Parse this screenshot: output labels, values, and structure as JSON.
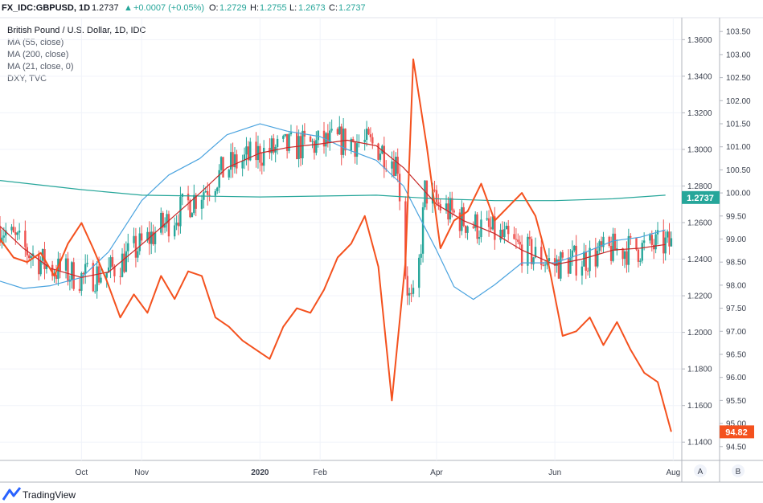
{
  "header": {
    "symbol": "FX_IDC:GBPUSD, 1D",
    "last": "1.2737",
    "change": "+0.0007 (+0.05%)",
    "o_label": "O:",
    "open": "1.2729",
    "h_label": "H:",
    "high": "1.2755",
    "l_label": "L:",
    "low": "1.2673",
    "c_label": "C:",
    "close": "1.2737"
  },
  "legend": {
    "title": "British Pound / U.S. Dollar, 1D, IDC",
    "items": [
      "MA (55, close)",
      "MA (200, close)",
      "MA (21, close, 0)",
      "DXY, TVC"
    ]
  },
  "footer": {
    "brand": "TradingView"
  },
  "scale_buttons": [
    "A",
    "B"
  ],
  "colors": {
    "up": "#26a69a",
    "down": "#ef5350",
    "dxy": "#f4511e",
    "ma55": "#4aa3df",
    "ma200": "#26a69a",
    "ma21": "#c62828",
    "up_marker": "#26a69a"
  },
  "chart_data": {
    "type": "line",
    "x_labels": [
      {
        "label": "Oct",
        "date": "2019-10-01"
      },
      {
        "label": "Nov",
        "date": "2019-11-01"
      },
      {
        "label": "2020",
        "date": "2020-01-01"
      },
      {
        "label": "Feb",
        "date": "2020-02-01"
      },
      {
        "label": "Apr",
        "date": "2020-04-01"
      },
      {
        "label": "Jun",
        "date": "2020-06-01"
      },
      {
        "label": "Aug",
        "date": "2020-08-01"
      }
    ],
    "x_range": [
      "2019-08-20",
      "2020-08-05"
    ],
    "left_axis": {
      "range": [
        1.13,
        1.372
      ],
      "ticks": [
        "1.3600",
        "1.3400",
        "1.3200",
        "1.3000",
        "1.2800",
        "1.2600",
        "1.2400",
        "1.2200",
        "1.2000",
        "1.1800",
        "1.1600",
        "1.1400"
      ]
    },
    "right_axis": {
      "range": [
        94.2,
        103.8
      ],
      "ticks": [
        "103.50",
        "103.00",
        "102.50",
        "102.00",
        "101.50",
        "101.00",
        "100.50",
        "100.00",
        "99.50",
        "99.00",
        "98.50",
        "98.00",
        "97.50",
        "97.00",
        "96.50",
        "96.00",
        "95.50",
        "95.00",
        "94.50"
      ]
    },
    "last_price_label": "1.2737",
    "last_dxy_label": "94.82",
    "series": [
      {
        "name": "MA (55, close)",
        "axis": "left",
        "points": [
          [
            "2019-08-20",
            1.228
          ],
          [
            "2019-09-01",
            1.224
          ],
          [
            "2019-09-15",
            1.2255
          ],
          [
            "2019-10-01",
            1.23
          ],
          [
            "2019-10-15",
            1.244
          ],
          [
            "2019-11-01",
            1.272
          ],
          [
            "2019-11-15",
            1.286
          ],
          [
            "2019-12-01",
            1.295
          ],
          [
            "2019-12-15",
            1.308
          ],
          [
            "2020-01-01",
            1.314
          ],
          [
            "2020-01-15",
            1.31
          ],
          [
            "2020-02-01",
            1.307
          ],
          [
            "2020-02-15",
            1.3
          ],
          [
            "2020-03-01",
            1.294
          ],
          [
            "2020-03-15",
            1.28
          ],
          [
            "2020-04-01",
            1.245
          ],
          [
            "2020-04-10",
            1.225
          ],
          [
            "2020-04-20",
            1.218
          ],
          [
            "2020-05-01",
            1.226
          ],
          [
            "2020-05-15",
            1.238
          ],
          [
            "2020-06-01",
            1.238
          ],
          [
            "2020-06-15",
            1.243
          ],
          [
            "2020-07-01",
            1.25
          ],
          [
            "2020-07-15",
            1.252
          ],
          [
            "2020-07-28",
            1.256
          ]
        ]
      },
      {
        "name": "MA (200, close)",
        "axis": "left",
        "points": [
          [
            "2019-08-20",
            1.283
          ],
          [
            "2019-10-01",
            1.278
          ],
          [
            "2019-11-01",
            1.275
          ],
          [
            "2019-12-01",
            1.2745
          ],
          [
            "2020-01-01",
            1.274
          ],
          [
            "2020-02-01",
            1.2745
          ],
          [
            "2020-03-01",
            1.275
          ],
          [
            "2020-04-01",
            1.273
          ],
          [
            "2020-05-01",
            1.272
          ],
          [
            "2020-06-01",
            1.272
          ],
          [
            "2020-07-01",
            1.273
          ],
          [
            "2020-07-28",
            1.275
          ]
        ]
      },
      {
        "name": "MA (21, close, 0)",
        "axis": "left",
        "points": [
          [
            "2019-08-20",
            1.258
          ],
          [
            "2019-09-01",
            1.246
          ],
          [
            "2019-09-15",
            1.235
          ],
          [
            "2019-10-01",
            1.23
          ],
          [
            "2019-10-15",
            1.233
          ],
          [
            "2019-11-01",
            1.248
          ],
          [
            "2019-11-15",
            1.261
          ],
          [
            "2019-12-01",
            1.276
          ],
          [
            "2019-12-15",
            1.29
          ],
          [
            "2020-01-01",
            1.298
          ],
          [
            "2020-01-15",
            1.301
          ],
          [
            "2020-02-01",
            1.303
          ],
          [
            "2020-02-15",
            1.305
          ],
          [
            "2020-03-01",
            1.302
          ],
          [
            "2020-03-15",
            1.29
          ],
          [
            "2020-04-01",
            1.27
          ],
          [
            "2020-04-15",
            1.261
          ],
          [
            "2020-05-01",
            1.254
          ],
          [
            "2020-05-15",
            1.245
          ],
          [
            "2020-06-01",
            1.237
          ],
          [
            "2020-06-15",
            1.24
          ],
          [
            "2020-07-01",
            1.245
          ],
          [
            "2020-07-15",
            1.246
          ],
          [
            "2020-07-28",
            1.248
          ]
        ]
      },
      {
        "name": "DXY, TVC",
        "axis": "right",
        "points": [
          [
            "2019-08-20",
            99.0
          ],
          [
            "2019-08-27",
            98.6
          ],
          [
            "2019-09-03",
            98.5
          ],
          [
            "2019-09-10",
            98.7
          ],
          [
            "2019-09-17",
            98.2
          ],
          [
            "2019-09-24",
            98.9
          ],
          [
            "2019-10-01",
            99.35
          ],
          [
            "2019-10-07",
            98.8
          ],
          [
            "2019-10-14",
            98.1
          ],
          [
            "2019-10-21",
            97.3
          ],
          [
            "2019-10-28",
            97.8
          ],
          [
            "2019-11-04",
            97.4
          ],
          [
            "2019-11-11",
            98.2
          ],
          [
            "2019-11-18",
            97.7
          ],
          [
            "2019-11-25",
            98.3
          ],
          [
            "2019-12-02",
            98.2
          ],
          [
            "2019-12-09",
            97.3
          ],
          [
            "2019-12-16",
            97.1
          ],
          [
            "2019-12-23",
            96.8
          ],
          [
            "2019-12-30",
            96.6
          ],
          [
            "2020-01-06",
            96.4
          ],
          [
            "2020-01-13",
            97.1
          ],
          [
            "2020-01-20",
            97.5
          ],
          [
            "2020-01-27",
            97.4
          ],
          [
            "2020-02-03",
            97.9
          ],
          [
            "2020-02-10",
            98.6
          ],
          [
            "2020-02-17",
            98.9
          ],
          [
            "2020-02-24",
            99.5
          ],
          [
            "2020-03-02",
            98.4
          ],
          [
            "2020-03-09",
            95.5
          ],
          [
            "2020-03-16",
            98.5
          ],
          [
            "2020-03-20",
            102.9
          ],
          [
            "2020-03-27",
            101.0
          ],
          [
            "2020-04-03",
            98.8
          ],
          [
            "2020-04-10",
            99.4
          ],
          [
            "2020-04-17",
            99.6
          ],
          [
            "2020-04-24",
            100.2
          ],
          [
            "2020-05-01",
            99.4
          ],
          [
            "2020-05-08",
            99.7
          ],
          [
            "2020-05-15",
            100.0
          ],
          [
            "2020-05-22",
            99.5
          ],
          [
            "2020-05-29",
            98.4
          ],
          [
            "2020-06-05",
            96.9
          ],
          [
            "2020-06-12",
            97.0
          ],
          [
            "2020-06-19",
            97.3
          ],
          [
            "2020-06-26",
            96.7
          ],
          [
            "2020-07-03",
            97.2
          ],
          [
            "2020-07-10",
            96.6
          ],
          [
            "2020-07-17",
            96.1
          ],
          [
            "2020-07-24",
            95.9
          ],
          [
            "2020-07-31",
            94.82
          ]
        ]
      }
    ]
  }
}
